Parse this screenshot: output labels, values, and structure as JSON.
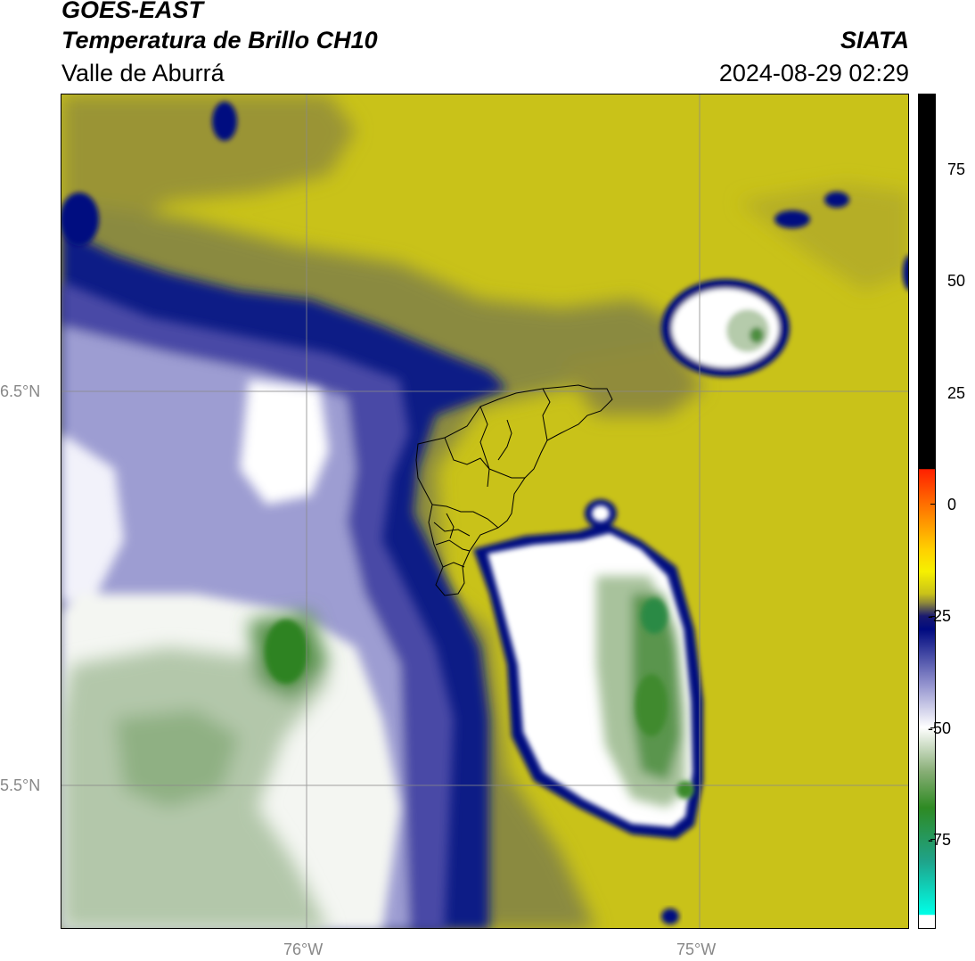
{
  "header": {
    "satellite": "GOES-EAST",
    "product": "Temperatura de Brillo CH10",
    "region": "Valle de Aburrá",
    "agency": "SIATA",
    "datetime": "2024-08-29 02:29"
  },
  "map": {
    "lat_ticks": [
      "6.5°N",
      "5.5°N"
    ],
    "lon_ticks": [
      "76°W",
      "75°W"
    ],
    "layers": [
      "brightness-temperature-field",
      "aburra-valley-municipality-boundaries",
      "graticule"
    ]
  },
  "colorbar": {
    "ticks": [
      "75",
      "50",
      "25",
      "0",
      "-25",
      "-50",
      "-75"
    ],
    "range": [
      -95,
      92
    ],
    "stops": [
      {
        "v": 92,
        "c": "#000000"
      },
      {
        "v": 8,
        "c": "#000000"
      },
      {
        "v": 7.9,
        "c": "#ff2000"
      },
      {
        "v": 0,
        "c": "#ff7000"
      },
      {
        "v": -10,
        "c": "#ffd000"
      },
      {
        "v": -15,
        "c": "#f6f000"
      },
      {
        "v": -20,
        "c": "#c9c219"
      },
      {
        "v": -22,
        "c": "#8f8a3a"
      },
      {
        "v": -25,
        "c": "#1a1a70"
      },
      {
        "v": -28,
        "c": "#000a80"
      },
      {
        "v": -40,
        "c": "#8f8fcc"
      },
      {
        "v": -50,
        "c": "#ffffff"
      },
      {
        "v": -60,
        "c": "#86ad74"
      },
      {
        "v": -68,
        "c": "#2e8a23"
      },
      {
        "v": -80,
        "c": "#1fa38a"
      },
      {
        "v": -92,
        "c": "#00ffe8"
      },
      {
        "v": -92.1,
        "c": "#ffffff"
      },
      {
        "v": -95,
        "c": "#ffffff"
      }
    ]
  },
  "colors": {
    "warm_surface": "#c9c219",
    "cold_cloud_navy": "#000a80",
    "cold_cloud_white": "#ffffff",
    "deep_convection_green": "#2e8a23",
    "graticule": "#8a8a8a"
  }
}
